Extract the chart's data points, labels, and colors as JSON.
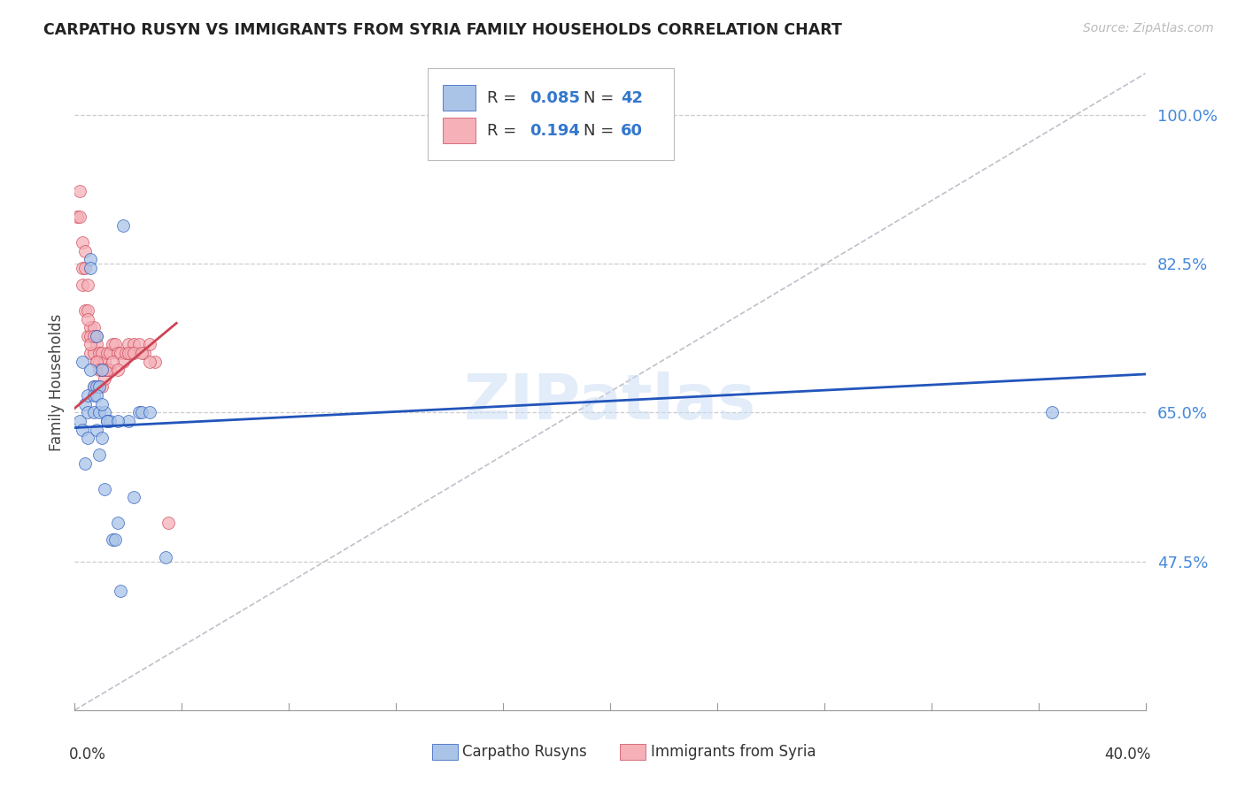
{
  "title": "CARPATHO RUSYN VS IMMIGRANTS FROM SYRIA FAMILY HOUSEHOLDS CORRELATION CHART",
  "source": "Source: ZipAtlas.com",
  "ylabel": "Family Households",
  "yticks": [
    0.475,
    0.65,
    0.825,
    1.0
  ],
  "ytick_labels": [
    "47.5%",
    "65.0%",
    "82.5%",
    "100.0%"
  ],
  "xmin": 0.0,
  "xmax": 0.4,
  "ymin": 0.3,
  "ymax": 1.07,
  "blue_color": "#aac4e8",
  "pink_color": "#f5b0b8",
  "trend_blue": "#2255bb",
  "trend_pink": "#cc4455",
  "diagonal_color": "#c0c0cc",
  "watermark": "ZIPatlas",
  "legend_label_blue": "Carpatho Rusyns",
  "legend_label_pink": "Immigrants from Syria",
  "blue_trend_x": [
    0.0,
    0.4
  ],
  "blue_trend_y": [
    0.632,
    0.695
  ],
  "pink_trend_x": [
    0.0,
    0.038
  ],
  "pink_trend_y": [
    0.655,
    0.755
  ],
  "blue_scatter_x": [
    0.002,
    0.003,
    0.003,
    0.004,
    0.005,
    0.005,
    0.005,
    0.006,
    0.006,
    0.007,
    0.007,
    0.007,
    0.008,
    0.008,
    0.008,
    0.009,
    0.009,
    0.009,
    0.01,
    0.01,
    0.011,
    0.011,
    0.012,
    0.013,
    0.014,
    0.015,
    0.016,
    0.017,
    0.018,
    0.02,
    0.022,
    0.024,
    0.025,
    0.028,
    0.034,
    0.365,
    0.004,
    0.006,
    0.008,
    0.01,
    0.012,
    0.016
  ],
  "blue_scatter_y": [
    0.64,
    0.63,
    0.71,
    0.66,
    0.67,
    0.65,
    0.62,
    0.83,
    0.82,
    0.68,
    0.67,
    0.65,
    0.74,
    0.68,
    0.63,
    0.68,
    0.65,
    0.6,
    0.7,
    0.62,
    0.65,
    0.56,
    0.64,
    0.64,
    0.5,
    0.5,
    0.52,
    0.44,
    0.87,
    0.64,
    0.55,
    0.65,
    0.65,
    0.65,
    0.48,
    0.65,
    0.59,
    0.7,
    0.67,
    0.66,
    0.64,
    0.64
  ],
  "pink_scatter_x": [
    0.001,
    0.002,
    0.002,
    0.003,
    0.003,
    0.004,
    0.004,
    0.005,
    0.005,
    0.005,
    0.006,
    0.006,
    0.006,
    0.007,
    0.007,
    0.007,
    0.008,
    0.008,
    0.008,
    0.009,
    0.009,
    0.009,
    0.01,
    0.01,
    0.011,
    0.011,
    0.012,
    0.012,
    0.013,
    0.013,
    0.014,
    0.015,
    0.016,
    0.017,
    0.018,
    0.019,
    0.02,
    0.021,
    0.022,
    0.024,
    0.026,
    0.028,
    0.03,
    0.035,
    0.003,
    0.004,
    0.005,
    0.006,
    0.007,
    0.008,
    0.009,
    0.01,
    0.011,
    0.012,
    0.014,
    0.016,
    0.02,
    0.022,
    0.025,
    0.028
  ],
  "pink_scatter_y": [
    0.88,
    0.91,
    0.88,
    0.85,
    0.8,
    0.84,
    0.77,
    0.8,
    0.77,
    0.74,
    0.75,
    0.74,
    0.72,
    0.75,
    0.72,
    0.68,
    0.74,
    0.73,
    0.71,
    0.72,
    0.71,
    0.68,
    0.72,
    0.68,
    0.71,
    0.69,
    0.72,
    0.7,
    0.72,
    0.7,
    0.73,
    0.73,
    0.72,
    0.72,
    0.71,
    0.72,
    0.73,
    0.72,
    0.73,
    0.73,
    0.72,
    0.73,
    0.71,
    0.52,
    0.82,
    0.82,
    0.76,
    0.73,
    0.74,
    0.71,
    0.7,
    0.7,
    0.7,
    0.7,
    0.71,
    0.7,
    0.72,
    0.72,
    0.72,
    0.71
  ]
}
